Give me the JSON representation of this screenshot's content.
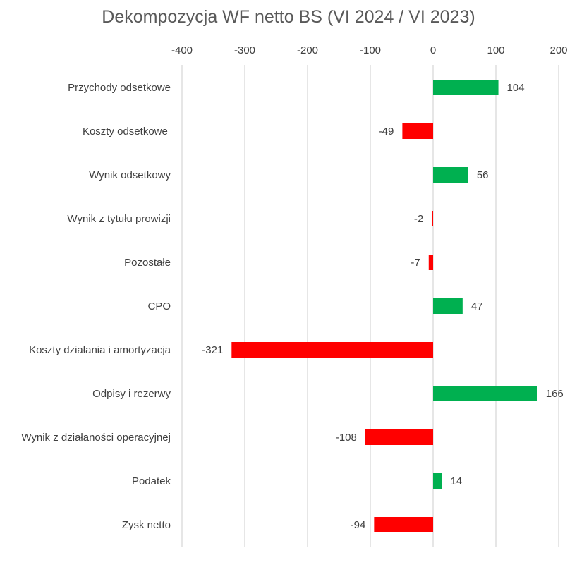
{
  "chart_data": {
    "type": "bar",
    "orientation": "horizontal",
    "title": "Dekompozycja WF netto BS (VI 2024 / VI 2023)",
    "categories": [
      "Przychody odsetkowe",
      "Koszty odsetkowe ",
      "Wynik odsetkowy",
      "Wynik z tytułu prowizji",
      "Pozostałe",
      "CPO",
      "Koszty działania i amortyzacja",
      "Odpisy i rezerwy",
      "Wynik z działaności operacyjnej",
      "Podatek",
      "Zysk netto"
    ],
    "values": [
      104,
      -49,
      56,
      -2,
      -7,
      47,
      -321,
      166,
      -108,
      14,
      -94
    ],
    "data_labels": [
      "104",
      "-49",
      "56",
      "-2",
      "-7",
      "47",
      "-321",
      "166",
      "-108",
      "14",
      "-94"
    ],
    "xlim": [
      -400,
      200
    ],
    "xticks": [
      -400,
      -300,
      -200,
      -100,
      0,
      100,
      200
    ],
    "xtick_labels": [
      "-400",
      "-300",
      "-200",
      "-100",
      "0",
      "100",
      "200"
    ],
    "x_axis_position": "top",
    "grid": true,
    "legend": "none",
    "colors": {
      "positive": "#00b050",
      "negative": "#ff0000",
      "grid": "#d9d9d9",
      "text": "#404040",
      "title": "#595959"
    }
  }
}
